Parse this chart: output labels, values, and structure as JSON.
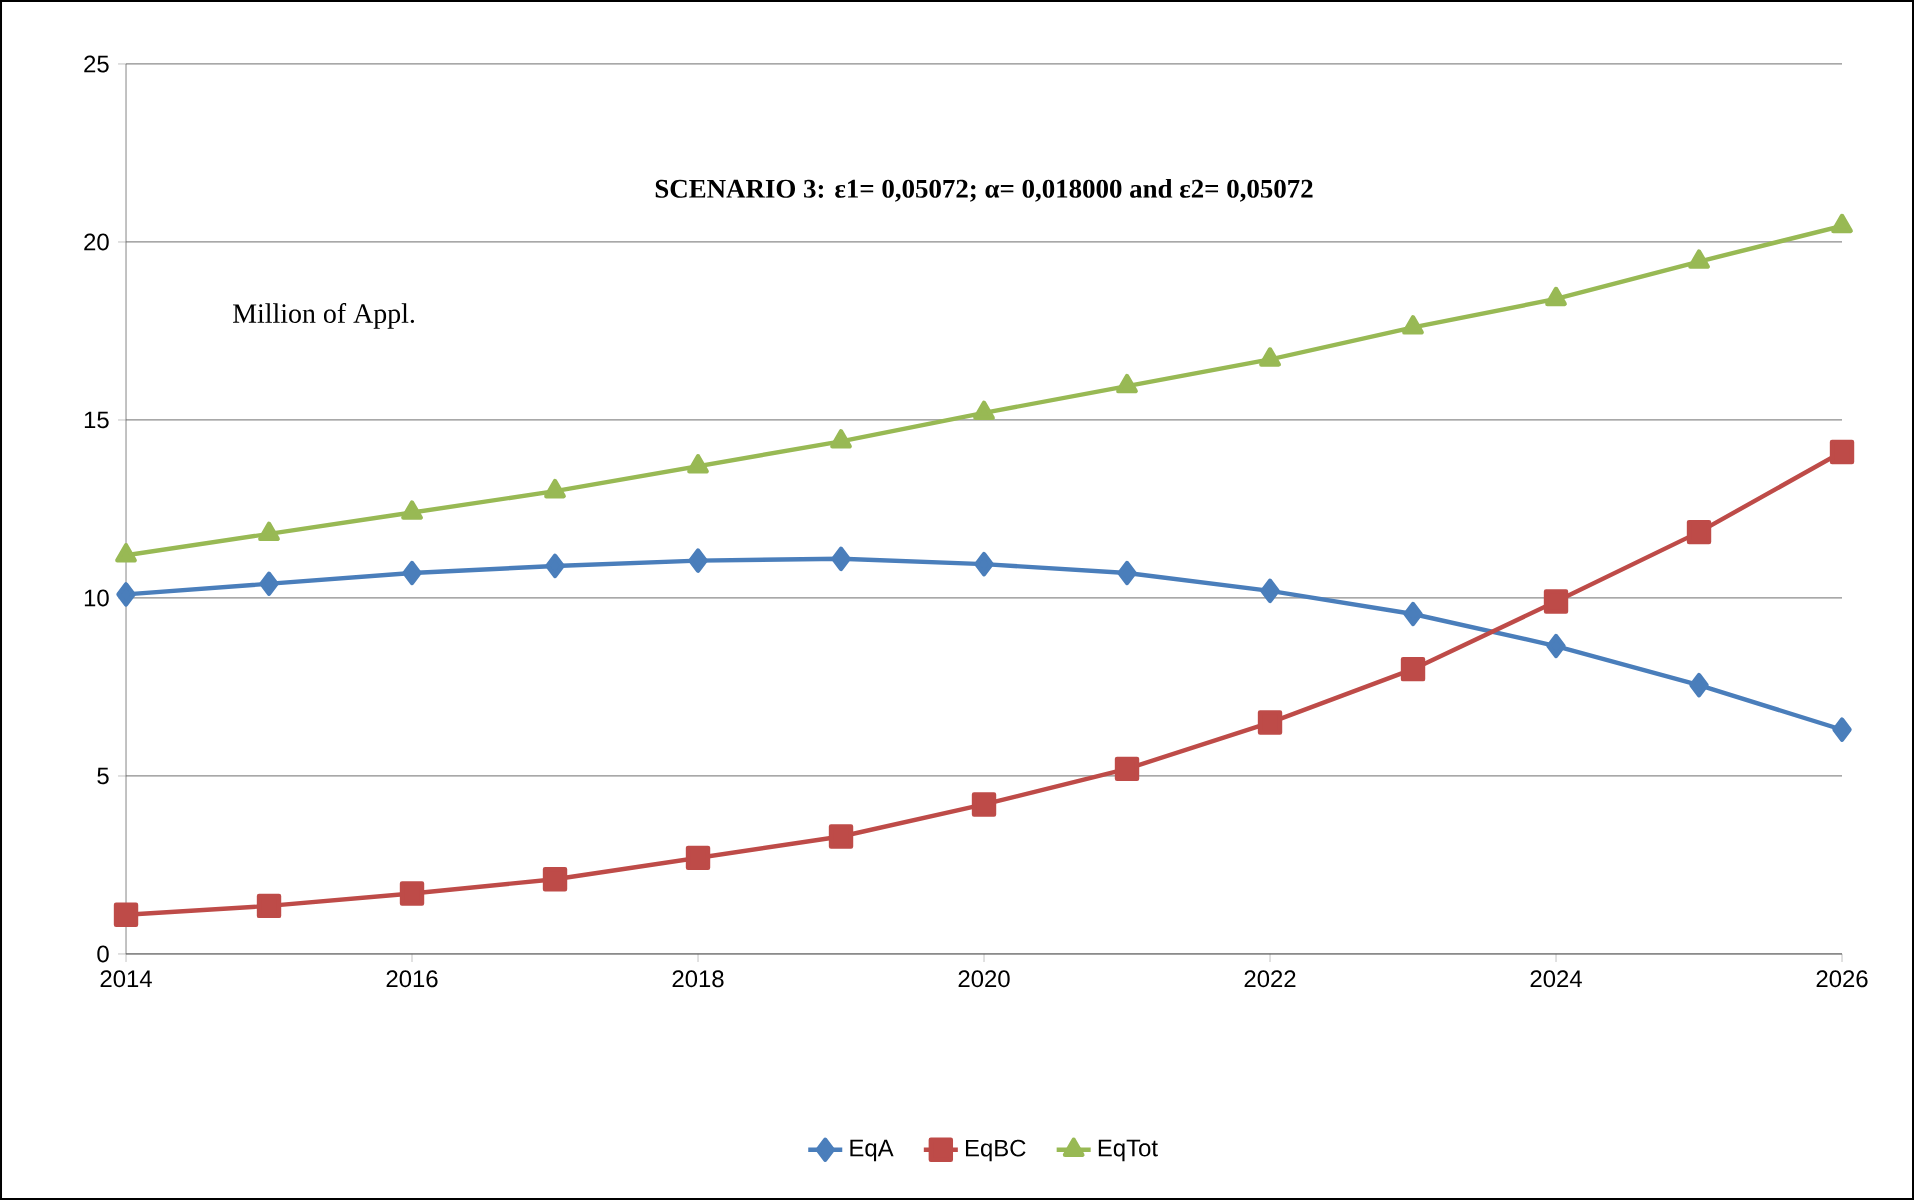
{
  "chart_data": {
    "type": "line",
    "title": "SCENARIO 3: ε1= 0,05072; α= 0,018000 and ε2= 0,05072",
    "annotations": [
      "Million of Appl."
    ],
    "x": [
      2014,
      2015,
      2016,
      2017,
      2018,
      2019,
      2020,
      2021,
      2022,
      2023,
      2024,
      2025,
      2026
    ],
    "series": [
      {
        "name": "EqA",
        "color": "#4a7ebb",
        "marker": "diamond",
        "values": [
          10.1,
          10.4,
          10.7,
          10.9,
          11.05,
          11.1,
          10.95,
          10.7,
          10.2,
          9.55,
          8.65,
          7.55,
          6.3
        ]
      },
      {
        "name": "EqBC",
        "color": "#be4b48",
        "marker": "square",
        "values": [
          1.1,
          1.35,
          1.7,
          2.1,
          2.7,
          3.3,
          4.2,
          5.2,
          6.5,
          8.0,
          9.9,
          11.85,
          14.1
        ]
      },
      {
        "name": "EqTot",
        "color": "#98b954",
        "marker": "triangle",
        "values": [
          11.2,
          11.8,
          12.4,
          13.0,
          13.7,
          14.4,
          15.2,
          15.95,
          16.7,
          17.6,
          18.4,
          19.45,
          20.45
        ]
      }
    ],
    "xlim": [
      2014,
      2026
    ],
    "xticks": [
      2014,
      2016,
      2018,
      2020,
      2022,
      2024,
      2026
    ],
    "ylim": [
      0,
      25
    ],
    "yticks": [
      0,
      5,
      10,
      15,
      20,
      25
    ],
    "grid": "y",
    "legend": "bottom"
  }
}
